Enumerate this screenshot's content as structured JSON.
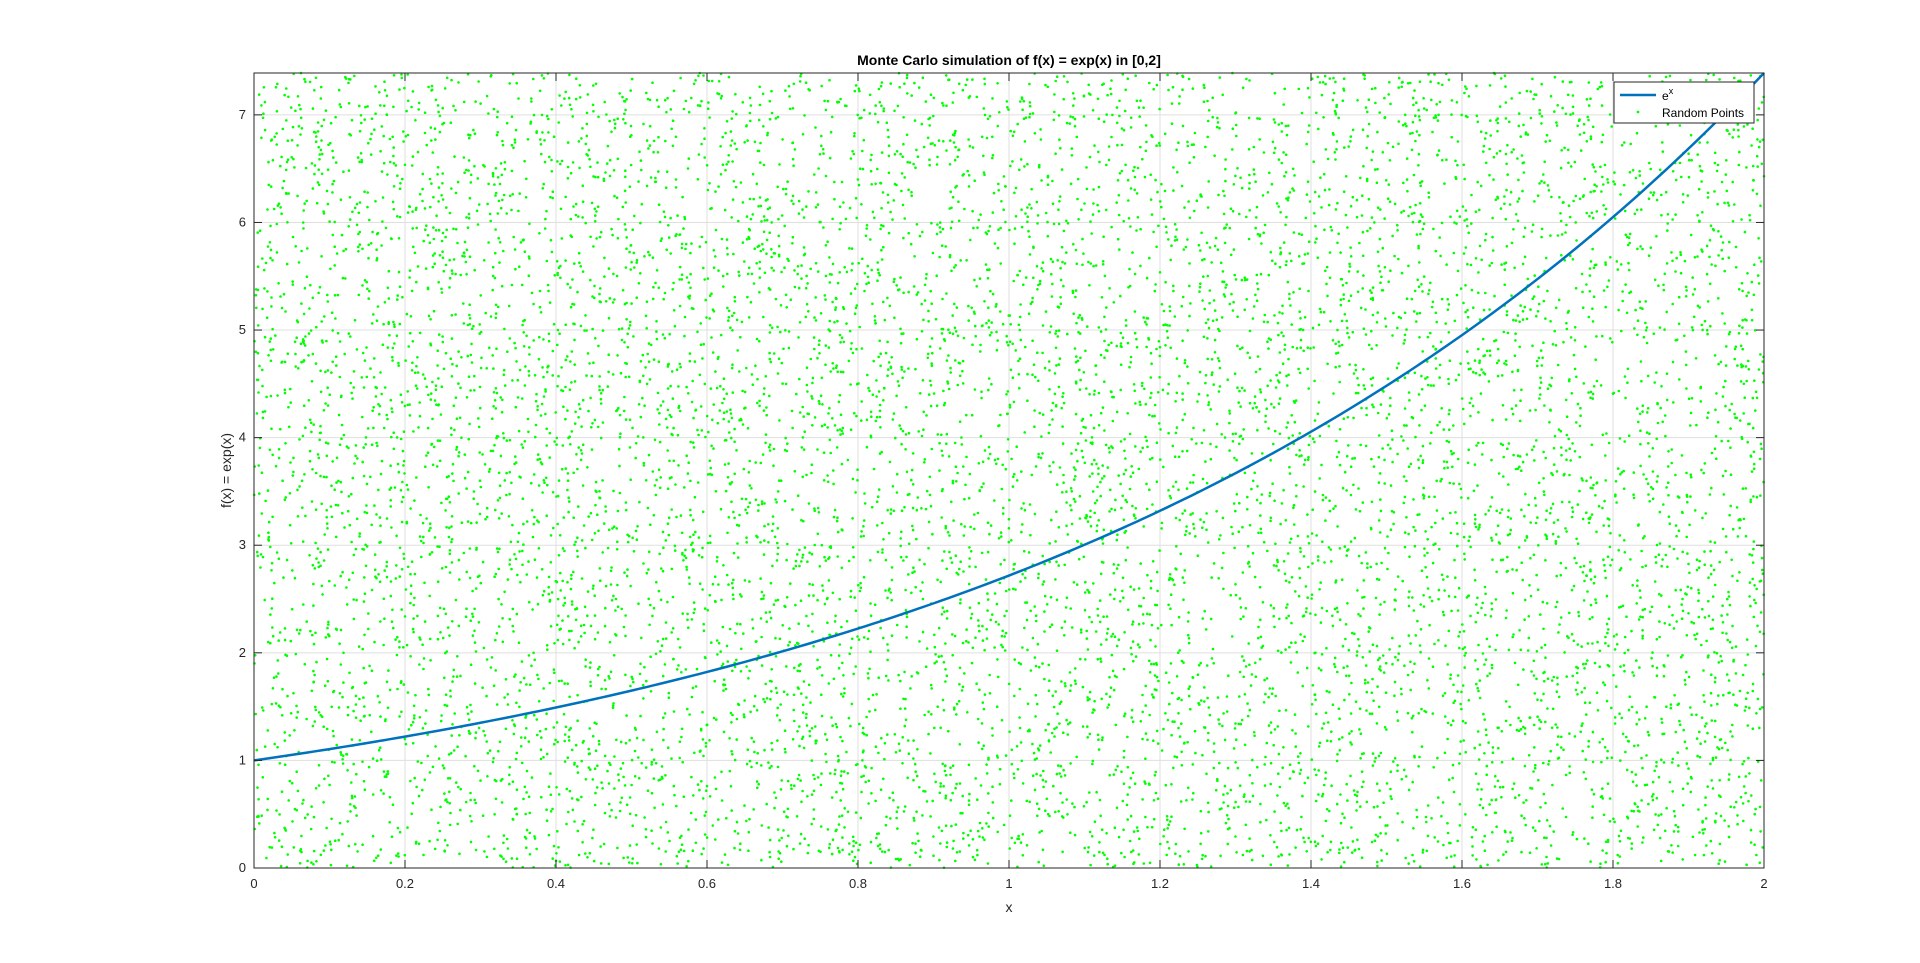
{
  "chart_data": {
    "type": "scatter",
    "title": "Monte Carlo simulation of f(x) = exp(x) in [0,2]",
    "xlabel": "x",
    "ylabel": "f(x) = exp(x)",
    "xlim": [
      0,
      2
    ],
    "ylim": [
      0,
      7.389
    ],
    "xticks": [
      "0",
      "0.2",
      "0.4",
      "0.6",
      "0.8",
      "1",
      "1.2",
      "1.4",
      "1.6",
      "1.8",
      "2"
    ],
    "yticks": [
      "0",
      "1",
      "2",
      "3",
      "4",
      "5",
      "6",
      "7"
    ],
    "grid": true,
    "legend_position": "top-right",
    "series": [
      {
        "name": "e",
        "name_superscript": "x",
        "kind": "line",
        "function": "exp(x)",
        "color": "#0072BD",
        "x": [
          0,
          0.2,
          0.4,
          0.6,
          0.8,
          1.0,
          1.2,
          1.4,
          1.6,
          1.8,
          2.0
        ],
        "y": [
          1.0,
          1.221,
          1.492,
          1.822,
          2.226,
          2.718,
          3.32,
          4.055,
          4.953,
          6.05,
          7.389
        ]
      },
      {
        "name": "Random Points",
        "kind": "scatter",
        "color": "#00FF00",
        "distribution": "uniform",
        "point_count": 10000
      }
    ]
  }
}
